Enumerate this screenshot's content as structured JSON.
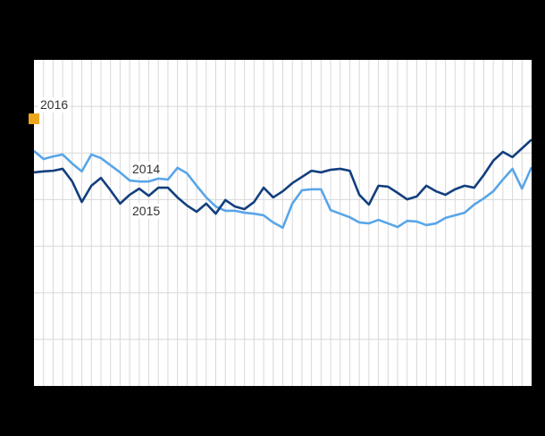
{
  "colors": {
    "background": "#000000",
    "plot_background": "#ffffff",
    "grid": "#d8d8d8",
    "label_text": "#333333",
    "series_2014": "#58a5e8",
    "series_2015": "#123f7e",
    "series_2016": "#eba81c"
  },
  "labels": {
    "y2016": "2016",
    "y2014": "2014",
    "y2015": "2015"
  },
  "chart_data": {
    "type": "line",
    "title": "",
    "x_axis": {
      "label": "",
      "unit": "week-of-year",
      "range": [
        1,
        53
      ],
      "tick_labels_visible": false,
      "interior_gridlines": 51
    },
    "y_axis": {
      "label": "",
      "tick_labels_visible": false,
      "interior_gridlines": 6,
      "scale_note": "values are percent of plot height from bottom; no numeric axis labels are visible in the image",
      "range": [
        0,
        100
      ]
    },
    "grid": true,
    "legend": "in-plot series labels",
    "series": [
      {
        "name": "2014",
        "type": "line",
        "color": "#58a5e8",
        "values": [
          72.0,
          69.5,
          70.3,
          70.9,
          68.1,
          65.7,
          70.9,
          69.8,
          67.6,
          65.4,
          62.9,
          62.6,
          62.6,
          63.5,
          63.2,
          66.8,
          65.1,
          61.3,
          57.7,
          54.9,
          53.6,
          53.6,
          53.0,
          52.7,
          52.2,
          50.0,
          48.4,
          55.8,
          59.9,
          60.2,
          60.2,
          53.8,
          52.7,
          51.6,
          50.0,
          49.7,
          50.8,
          49.7,
          48.6,
          50.5,
          50.3,
          49.2,
          49.7,
          51.4,
          52.2,
          53.0,
          55.5,
          57.4,
          59.6,
          63.2,
          66.5,
          60.4,
          67.0
        ]
      },
      {
        "name": "2015",
        "type": "line",
        "color": "#123f7e",
        "values": [
          65.4,
          65.7,
          65.9,
          66.5,
          62.6,
          56.3,
          61.3,
          63.7,
          59.9,
          55.8,
          58.5,
          60.4,
          58.2,
          60.7,
          60.7,
          57.7,
          55.2,
          53.3,
          55.8,
          52.7,
          56.9,
          54.9,
          54.1,
          56.3,
          60.7,
          57.7,
          59.6,
          62.1,
          64.0,
          65.9,
          65.4,
          66.2,
          66.5,
          65.9,
          58.5,
          55.5,
          61.3,
          61.0,
          59.1,
          57.1,
          58.0,
          61.3,
          59.6,
          58.5,
          60.2,
          61.3,
          60.7,
          64.6,
          69.0,
          71.7,
          70.1,
          72.8,
          75.5
        ]
      },
      {
        "name": "2016",
        "type": "point",
        "marker": "square",
        "color": "#eba81c",
        "week": 1,
        "value": 81.9
      }
    ]
  }
}
